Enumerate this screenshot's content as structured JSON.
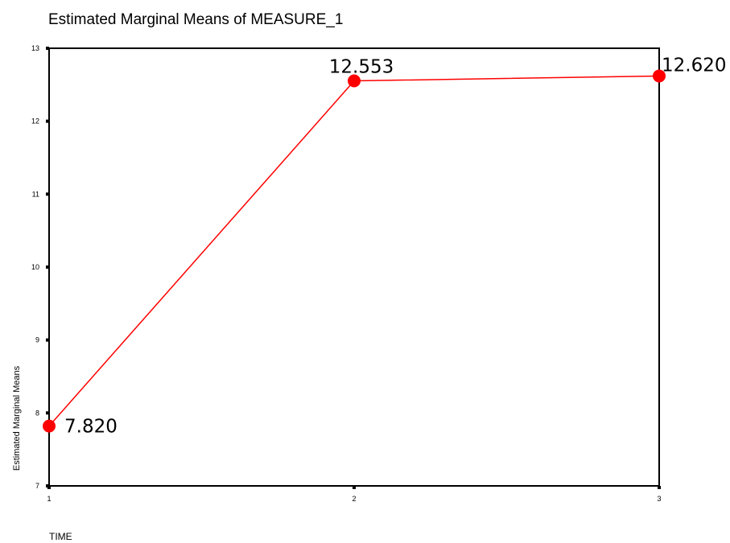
{
  "chart_data": {
    "type": "line",
    "title": "Estimated Marginal Means of MEASURE_1",
    "xlabel": "TIME",
    "ylabel": "Estimated Marginal Means",
    "categories": [
      "1",
      "2",
      "3"
    ],
    "series": [
      {
        "values": [
          7.82,
          12.553,
          12.62
        ],
        "color": "#ff0000"
      }
    ],
    "data_labels": [
      "7.820",
      "12.553",
      "12.620"
    ],
    "yticks": [
      "7",
      "8",
      "9",
      "10",
      "11",
      "12",
      "13"
    ],
    "ylim": [
      7,
      13
    ],
    "grid": false
  }
}
